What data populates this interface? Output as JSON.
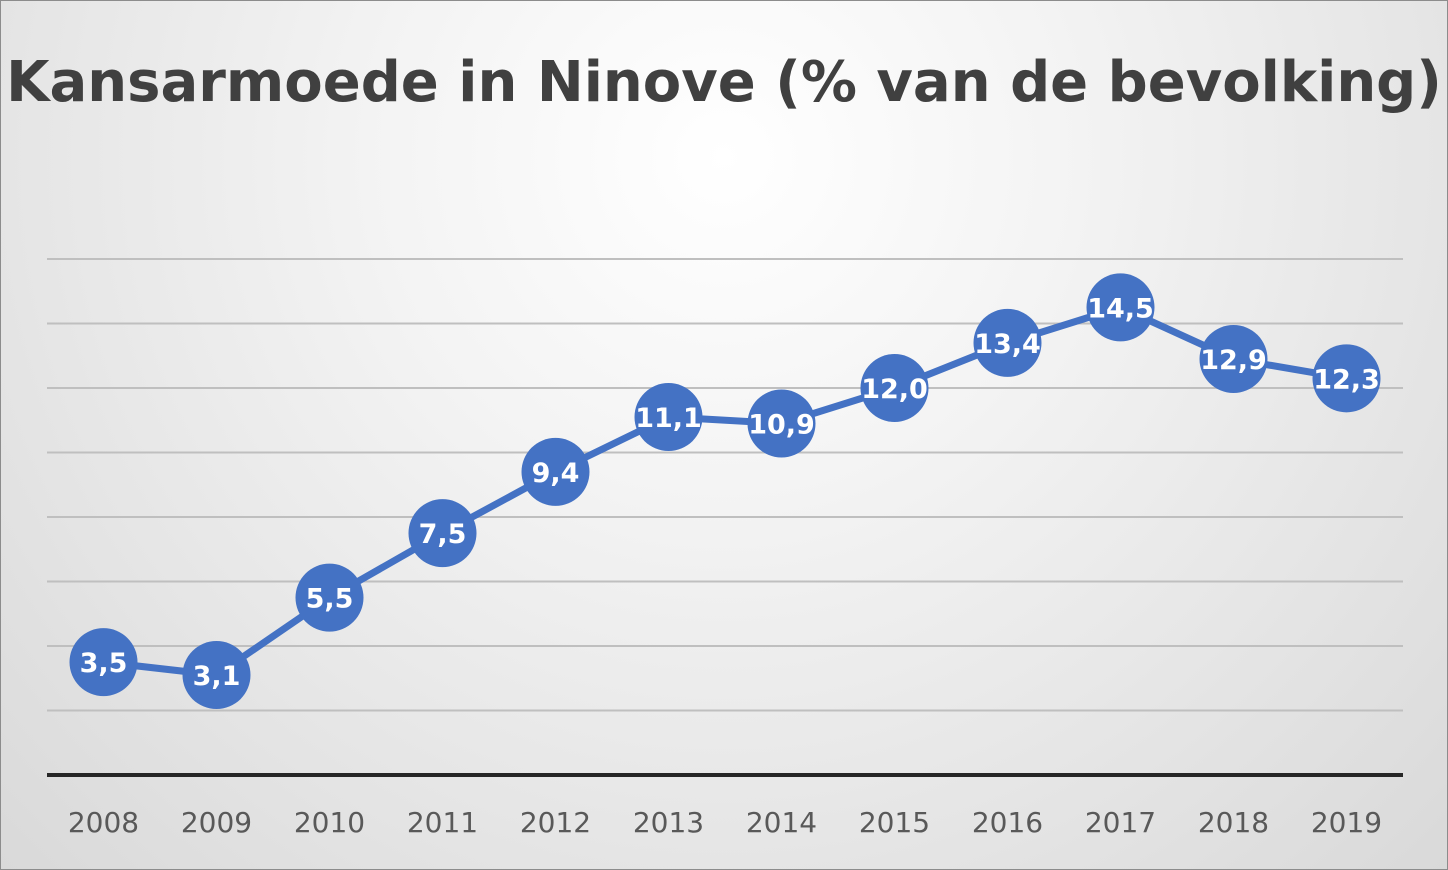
{
  "chart_data": {
    "type": "line",
    "title": "Kansarmoede in Ninove (% van de bevolking)",
    "categories": [
      "2008",
      "2009",
      "2010",
      "2011",
      "2012",
      "2013",
      "2014",
      "2015",
      "2016",
      "2017",
      "2018",
      "2019"
    ],
    "series": [
      {
        "values": [
          3.5,
          3.1,
          5.5,
          7.5,
          9.4,
          11.1,
          10.9,
          12.0,
          13.4,
          14.5,
          12.9,
          12.3
        ],
        "labels": [
          "3,5",
          "3,1",
          "5,5",
          "7,5",
          "9,4",
          "11,1",
          "10,9",
          "12,0",
          "13,4",
          "14,5",
          "12,9",
          "12,3"
        ]
      }
    ],
    "xlabel": "",
    "ylabel": "",
    "ylim": [
      0,
      16
    ],
    "y_gridlines": [
      2,
      4,
      6,
      8,
      10,
      12,
      14,
      16
    ],
    "y_tick_labels_shown": false,
    "legend": "none",
    "grid": true,
    "colors": {
      "series": "#4472c4",
      "grid": "#bfbfbf",
      "axis": "#262626",
      "title": "#404040",
      "tick_label": "#595959"
    }
  }
}
